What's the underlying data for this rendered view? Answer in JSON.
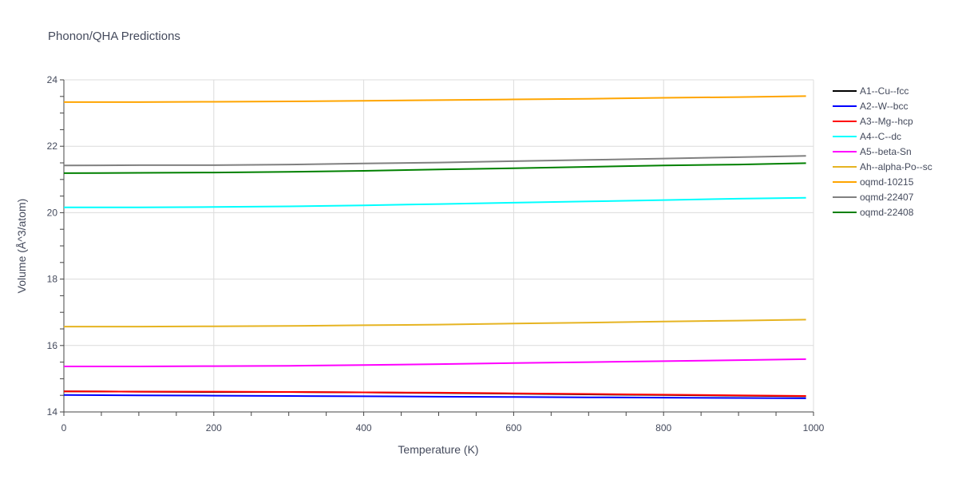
{
  "chart_data": {
    "type": "line",
    "title": "Phonon/QHA Predictions",
    "xlabel": "Temperature (K)",
    "ylabel": "Volume (Å^3/atom)",
    "xlim": [
      0,
      1000
    ],
    "ylim": [
      14,
      24
    ],
    "xticks": [
      0,
      200,
      400,
      600,
      800,
      1000
    ],
    "yticks": [
      14,
      16,
      18,
      20,
      22,
      24
    ],
    "grid": true,
    "legend_position": "right",
    "series": [
      {
        "name": "A1--Cu--fcc",
        "color": "#000000",
        "x": [
          0,
          100,
          200,
          300,
          400,
          500,
          600,
          700,
          800,
          900,
          990
        ],
        "y": [
          14.62,
          14.61,
          14.6,
          14.6,
          14.59,
          14.57,
          14.55,
          14.53,
          14.51,
          14.49,
          14.47
        ]
      },
      {
        "name": "A2--W--bcc",
        "color": "#0000ff",
        "x": [
          0,
          100,
          200,
          300,
          400,
          500,
          600,
          700,
          800,
          900,
          990
        ],
        "y": [
          14.51,
          14.5,
          14.49,
          14.48,
          14.47,
          14.46,
          14.45,
          14.44,
          14.43,
          14.42,
          14.41
        ]
      },
      {
        "name": "A3--Mg--hcp",
        "color": "#ff0000",
        "x": [
          0,
          100,
          200,
          300,
          400,
          500,
          600,
          700,
          800,
          900,
          990
        ],
        "y": [
          14.62,
          14.61,
          14.61,
          14.6,
          14.59,
          14.58,
          14.56,
          14.54,
          14.52,
          14.5,
          14.48
        ]
      },
      {
        "name": "A4--C--dc",
        "color": "#00ffff",
        "x": [
          0,
          100,
          200,
          300,
          400,
          500,
          600,
          700,
          800,
          900,
          990
        ],
        "y": [
          20.16,
          20.16,
          20.17,
          20.19,
          20.22,
          20.26,
          20.3,
          20.34,
          20.38,
          20.42,
          20.45
        ]
      },
      {
        "name": "A5--beta-Sn",
        "color": "#ff00ff",
        "x": [
          0,
          100,
          200,
          300,
          400,
          500,
          600,
          700,
          800,
          900,
          990
        ],
        "y": [
          15.37,
          15.37,
          15.38,
          15.39,
          15.41,
          15.44,
          15.47,
          15.5,
          15.53,
          15.56,
          15.59
        ]
      },
      {
        "name": "Ah--alpha-Po--sc",
        "color": "#e6b422",
        "x": [
          0,
          100,
          200,
          300,
          400,
          500,
          600,
          700,
          800,
          900,
          990
        ],
        "y": [
          16.57,
          16.57,
          16.58,
          16.59,
          16.61,
          16.63,
          16.66,
          16.69,
          16.72,
          16.75,
          16.78
        ]
      },
      {
        "name": "oqmd-10215",
        "color": "#ffa500",
        "x": [
          0,
          100,
          200,
          300,
          400,
          500,
          600,
          700,
          800,
          900,
          990
        ],
        "y": [
          23.33,
          23.33,
          23.34,
          23.35,
          23.37,
          23.39,
          23.41,
          23.43,
          23.46,
          23.48,
          23.51
        ]
      },
      {
        "name": "oqmd-22407",
        "color": "#808080",
        "x": [
          0,
          100,
          200,
          300,
          400,
          500,
          600,
          700,
          800,
          900,
          990
        ],
        "y": [
          21.42,
          21.43,
          21.43,
          21.45,
          21.48,
          21.51,
          21.55,
          21.59,
          21.63,
          21.67,
          21.71
        ]
      },
      {
        "name": "oqmd-22408",
        "color": "#008000",
        "x": [
          0,
          100,
          200,
          300,
          400,
          500,
          600,
          700,
          800,
          900,
          990
        ],
        "y": [
          21.19,
          21.2,
          21.21,
          21.23,
          21.26,
          21.3,
          21.34,
          21.38,
          21.42,
          21.45,
          21.49
        ]
      }
    ]
  }
}
